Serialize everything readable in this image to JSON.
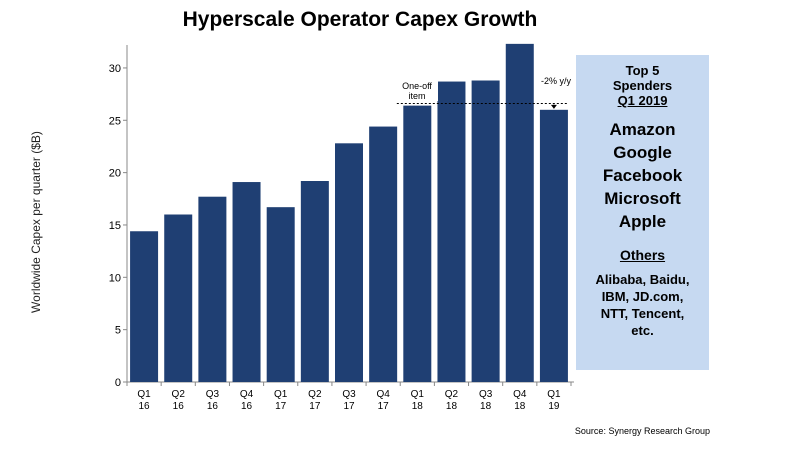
{
  "title": "Hyperscale Operator Capex Growth",
  "colors": {
    "bar": "#1f3f73",
    "side_box": "#c6d9f1"
  },
  "chart_data": {
    "type": "bar",
    "title": "Hyperscale Operator Capex Growth",
    "xlabel": "",
    "ylabel": "Worldwide Capex per quarter ($B)",
    "ylim": [
      0,
      32
    ],
    "yticks": [
      0,
      5,
      10,
      15,
      20,
      25,
      30
    ],
    "grid": false,
    "categories": [
      [
        "Q1",
        "16"
      ],
      [
        "Q2",
        "16"
      ],
      [
        "Q3",
        "16"
      ],
      [
        "Q4",
        "16"
      ],
      [
        "Q1",
        "17"
      ],
      [
        "Q2",
        "17"
      ],
      [
        "Q3",
        "17"
      ],
      [
        "Q4",
        "17"
      ],
      [
        "Q1",
        "18"
      ],
      [
        "Q2",
        "18"
      ],
      [
        "Q3",
        "18"
      ],
      [
        "Q4",
        "18"
      ],
      [
        "Q1",
        "19"
      ]
    ],
    "values": [
      14.4,
      16.0,
      17.7,
      19.1,
      16.7,
      19.2,
      22.8,
      24.4,
      26.4,
      28.7,
      28.8,
      32.3,
      26.0
    ],
    "annotations": {
      "one_off": "One-off item",
      "yoy": "-2% y/y",
      "reference_value": 26.6
    }
  },
  "sidebar": {
    "heading_line1": "Top 5",
    "heading_line2": "Spenders",
    "heading_line3": "Q1 2019",
    "top_spenders": [
      "Amazon",
      "Google",
      "Facebook",
      "Microsoft",
      "Apple"
    ],
    "others_label": "Others",
    "others_lines": [
      "Alibaba, Baidu,",
      "IBM, JD.com,",
      "NTT, Tencent,",
      "etc."
    ]
  },
  "source": "Source:  Synergy Research  Group"
}
